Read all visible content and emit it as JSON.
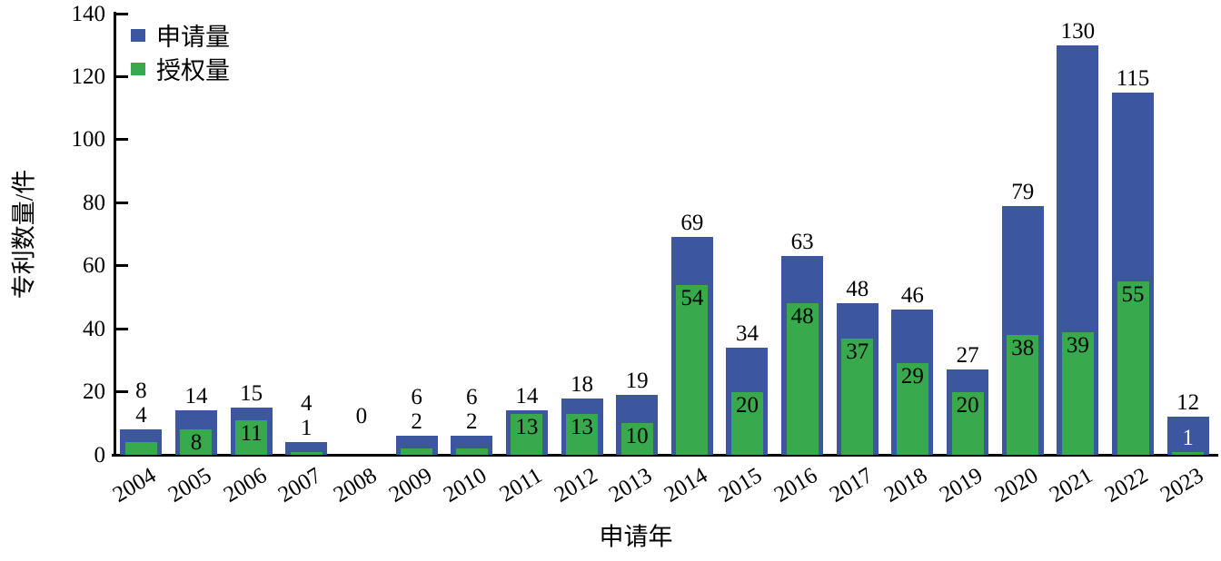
{
  "chart_data": {
    "type": "bar",
    "title": "",
    "xlabel": "申请年",
    "ylabel": "专利数量/件",
    "ylim": [
      0,
      140
    ],
    "yticks": [
      0,
      20,
      40,
      60,
      80,
      100,
      120,
      140
    ],
    "grid": false,
    "legend_position": "top-left-inside",
    "categories": [
      "2004",
      "2005",
      "2006",
      "2007",
      "2008",
      "2009",
      "2010",
      "2011",
      "2012",
      "2013",
      "2014",
      "2015",
      "2016",
      "2017",
      "2018",
      "2019",
      "2020",
      "2021",
      "2022",
      "2023"
    ],
    "series": [
      {
        "name": "申请量",
        "color": "#3C56A0",
        "values": [
          8,
          14,
          15,
          4,
          0,
          6,
          6,
          14,
          18,
          19,
          69,
          34,
          63,
          48,
          46,
          27,
          79,
          130,
          115,
          12
        ]
      },
      {
        "name": "授权量",
        "color": "#38A94C",
        "values": [
          4,
          8,
          11,
          1,
          0,
          2,
          2,
          13,
          13,
          10,
          54,
          20,
          48,
          37,
          29,
          20,
          38,
          39,
          55,
          1
        ]
      }
    ],
    "grant_label_placement": [
      "above",
      "inside",
      "inside",
      "above",
      "none",
      "above",
      "above",
      "inside",
      "inside",
      "inside",
      "inside",
      "inside",
      "inside",
      "inside",
      "inside",
      "inside",
      "inside",
      "inside",
      "inside",
      "inside-white"
    ],
    "text_color": "#000000",
    "axis_color": "#000000",
    "inside_white_label_color": "#ffffff"
  }
}
